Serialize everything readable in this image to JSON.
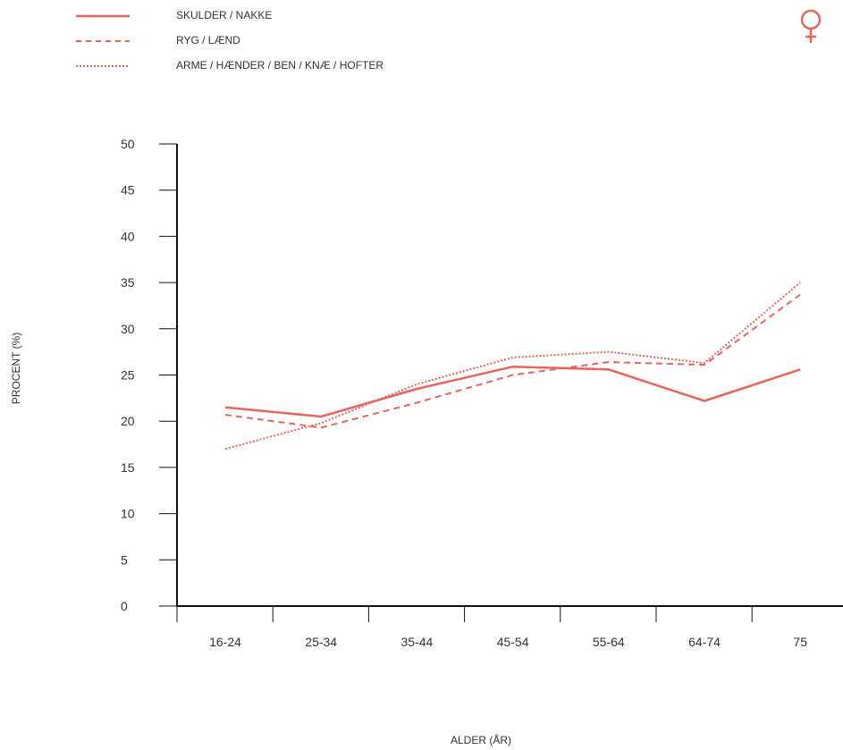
{
  "colors": {
    "series": "#e8645f",
    "axis": "#111111",
    "text": "#333333"
  },
  "legend": [
    {
      "label": "SKULDER / NAKKE",
      "style": "solid"
    },
    {
      "label": "RYG / LÆND",
      "style": "dashed"
    },
    {
      "label": "ARME / HÆNDER / BEN / KNÆ / HOFTER",
      "style": "dotted"
    }
  ],
  "icon": {
    "name": "female-symbol-icon"
  },
  "chart_data": {
    "type": "line",
    "title": "",
    "xlabel": "ALDER (ÅR)",
    "ylabel": "PROCENT (%)",
    "categories": [
      "16-24",
      "25-34",
      "35-44",
      "45-54",
      "55-64",
      "64-74",
      "75"
    ],
    "ylim": [
      0,
      50
    ],
    "yticks": [
      0,
      5,
      10,
      15,
      20,
      25,
      30,
      35,
      40,
      45,
      50
    ],
    "grid": false,
    "legend_position": "top-left",
    "series": [
      {
        "name": "SKULDER / NAKKE",
        "style": "solid",
        "values": [
          21.5,
          20.5,
          23.5,
          25.9,
          25.6,
          22.2,
          25.6
        ]
      },
      {
        "name": "RYG / LÆND",
        "style": "dashed",
        "values": [
          20.7,
          19.3,
          22.0,
          25.0,
          26.4,
          26.1,
          33.7
        ]
      },
      {
        "name": "ARME / HÆNDER / BEN / KNÆ / HOFTER",
        "style": "dotted",
        "values": [
          17.0,
          19.8,
          24.0,
          26.9,
          27.5,
          26.3,
          35.0
        ]
      }
    ]
  }
}
